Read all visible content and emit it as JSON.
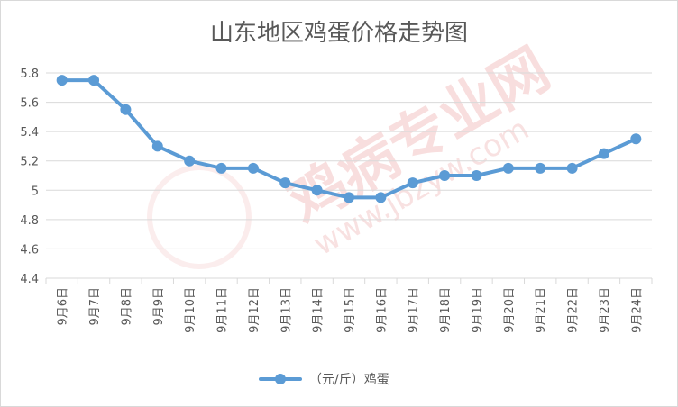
{
  "chart_data": {
    "type": "line",
    "title": "山东地区鸡蛋价格走势图",
    "categories": [
      "9月6日",
      "9月7日",
      "9月8日",
      "9月9日",
      "9月10日",
      "9月11日",
      "9月12日",
      "9月13日",
      "9月14日",
      "9月15日",
      "9月16日",
      "9月17日",
      "9月18日",
      "9月19日",
      "9月20日",
      "9月21日",
      "9月22日",
      "9月23日",
      "9月24日"
    ],
    "series": [
      {
        "name": "（元/斤）鸡蛋",
        "values": [
          5.75,
          5.75,
          5.55,
          5.3,
          5.2,
          5.15,
          5.15,
          5.05,
          5.0,
          4.95,
          4.95,
          5.05,
          5.1,
          5.1,
          5.15,
          5.15,
          5.15,
          5.25,
          5.35
        ],
        "color": "#5b9bd5"
      }
    ],
    "yticks": [
      "4.4",
      "4.6",
      "4.8",
      "5",
      "5.2",
      "5.4",
      "5.6",
      "5.8"
    ],
    "ylim": [
      4.4,
      5.8
    ],
    "xlabel": "",
    "ylabel": "",
    "grid": true,
    "legend_position": "bottom"
  },
  "watermark": {
    "text": "鸡病专业网",
    "url": "www.jbzyw.com",
    "color": "#f2b8b8"
  }
}
